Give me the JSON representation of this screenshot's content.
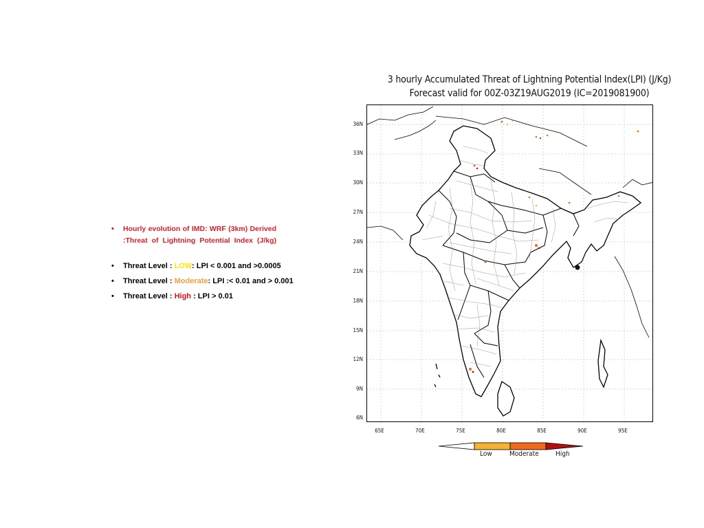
{
  "notes": {
    "intro": "Hourly evolution of IMD: WRF (3km) Derived :Threat of Lightning Potential Index (J/kg)",
    "threats": [
      {
        "prefix": "Threat Level : ",
        "level": "LOW",
        "suffix": ": LPI < 0.001 and >0.0005",
        "color": "#ffe600"
      },
      {
        "prefix": "Threat Level : ",
        "level": "Moderate",
        "suffix": ": LPI :< 0.01 and > 0.001",
        "color": "#f0a040"
      },
      {
        "prefix": "Threat Level : ",
        "level": "High",
        "suffix": " : LPI > 0.01",
        "color": "#e0101a"
      }
    ],
    "bullet": "•"
  },
  "map": {
    "title_line1": "3 hourly Accumulated Threat of Lightning Potential Index(LPI) (J/Kg)",
    "title_line2": "Forecast valid for 00Z-03Z19AUG2019 (IC=2019081900)",
    "lat_ticks": [
      "36N",
      "33N",
      "30N",
      "27N",
      "24N",
      "21N",
      "18N",
      "15N",
      "12N",
      "9N",
      "6N"
    ],
    "lon_ticks": [
      "65E",
      "70E",
      "75E",
      "80E",
      "85E",
      "90E",
      "95E"
    ],
    "legend": {
      "low": "Low",
      "moderate": "Moderate",
      "high": "High"
    },
    "colors": {
      "low": "#f5b335",
      "moderate": "#ef6b1a",
      "high": "#b51010",
      "boundary": "#000000",
      "district": "#8a8a8a"
    }
  }
}
